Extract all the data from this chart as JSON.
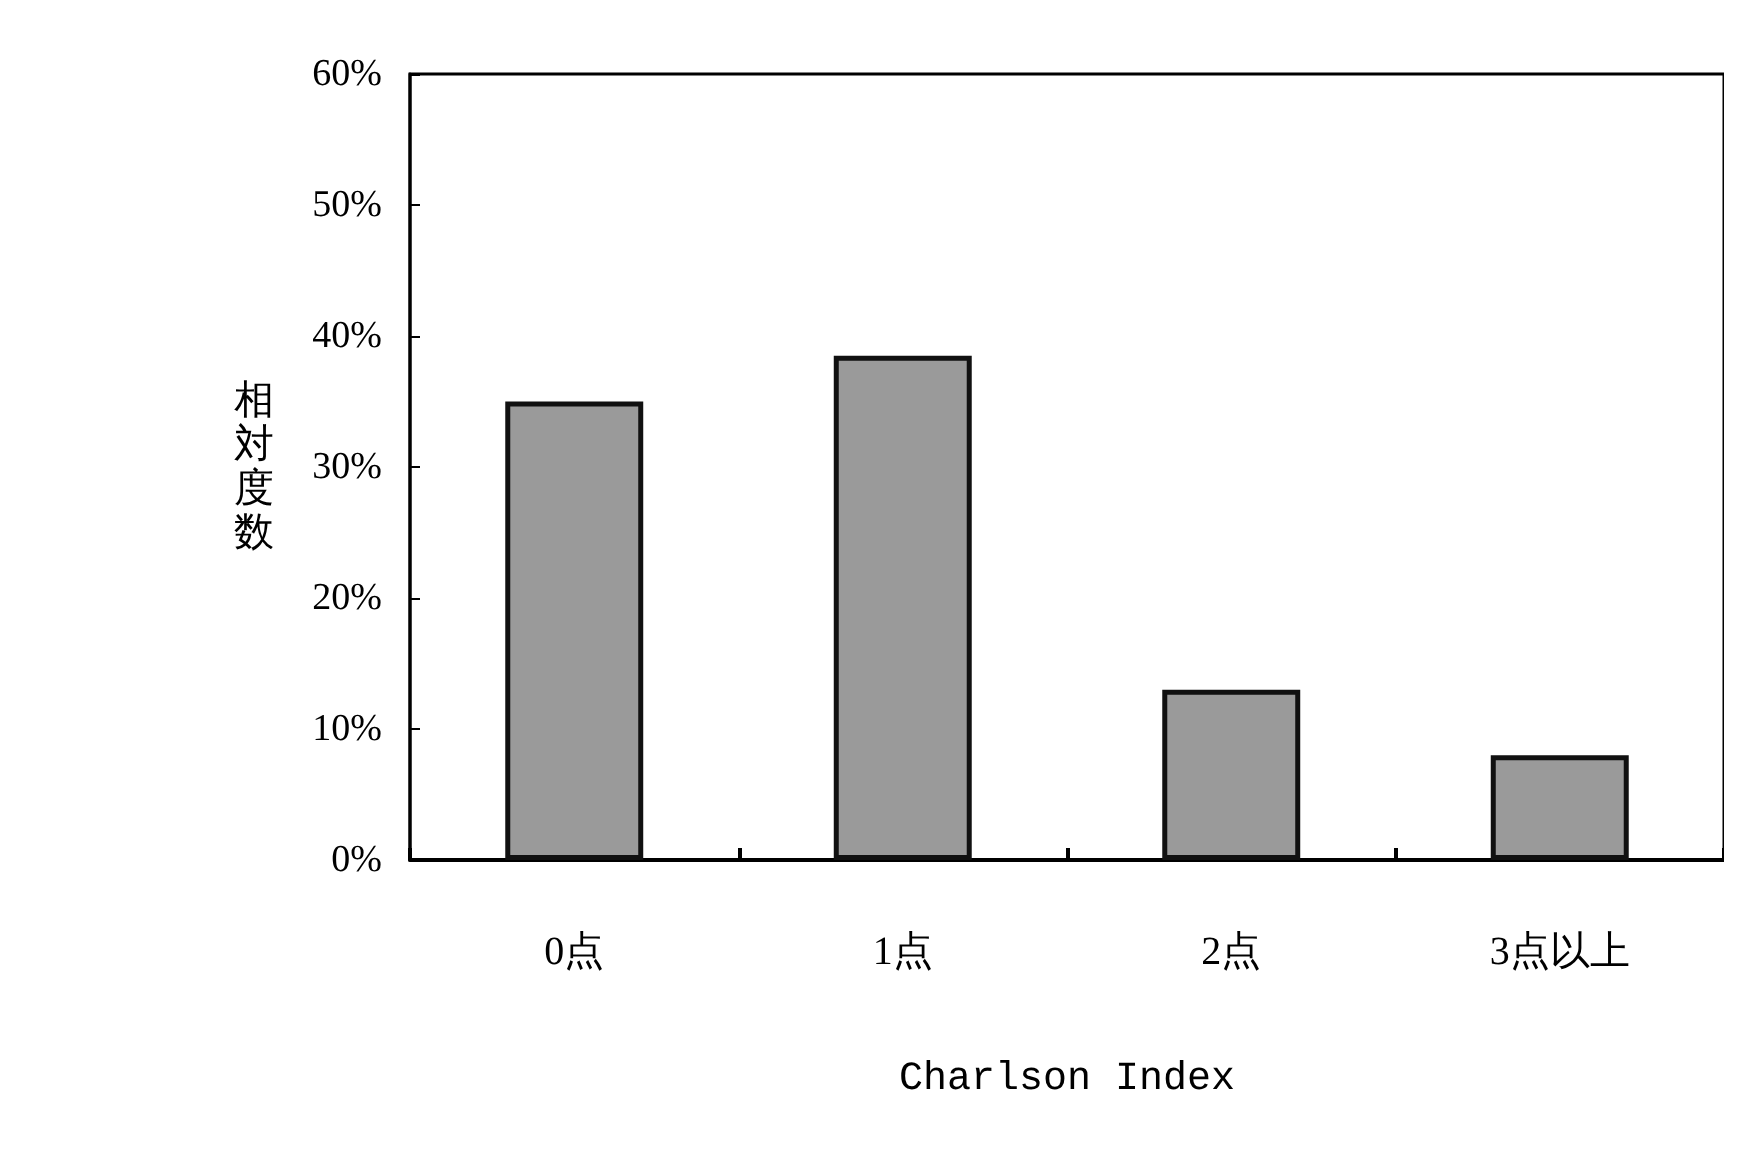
{
  "chart_data": {
    "type": "bar",
    "xlabel": "Charlson Index",
    "ylabel": "相対度数",
    "categories": [
      "0点",
      "1点",
      "2点",
      "3点以上"
    ],
    "values": [
      35,
      38.5,
      13,
      8
    ],
    "color": "#9a9a9a",
    "ylim": [
      0,
      60
    ],
    "yticks": [
      {
        "value": 0,
        "label": "0%"
      },
      {
        "value": 10,
        "label": "10%"
      },
      {
        "value": 20,
        "label": "20%"
      },
      {
        "value": 30,
        "label": "30%"
      },
      {
        "value": 40,
        "label": "40%"
      },
      {
        "value": 50,
        "label": "50%"
      },
      {
        "value": 60,
        "label": "60%"
      }
    ],
    "grid": false
  }
}
